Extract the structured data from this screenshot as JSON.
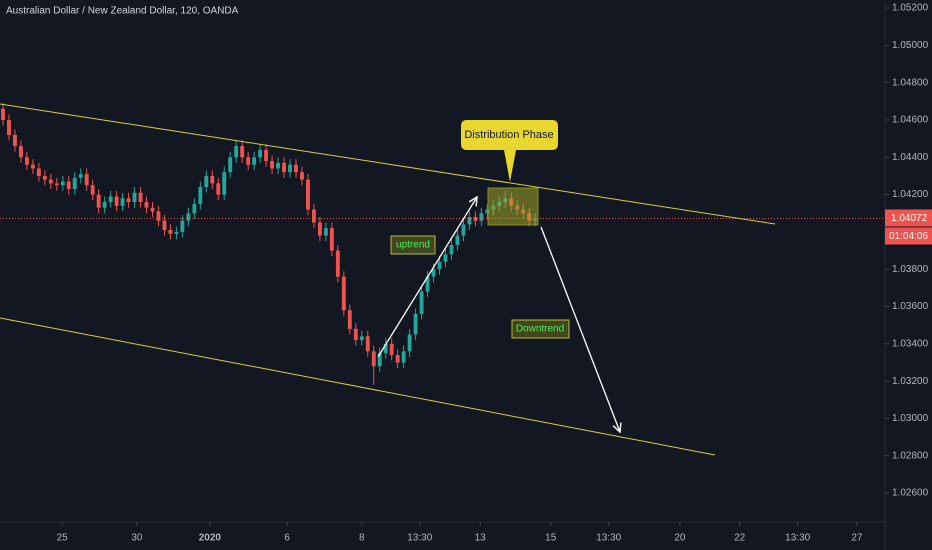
{
  "chart_data": {
    "type": "candlestick",
    "title": "Australian Dollar / New Zealand Dollar, 120, OANDA",
    "up_color": "#26a69a",
    "down_color": "#ef5350",
    "xlim": [
      -0.5,
      147.5
    ],
    "xticks": [
      {
        "value": 9.9,
        "label": "25"
      },
      {
        "value": 22.4,
        "label": "30"
      },
      {
        "value": 34.6,
        "label": "2020"
      },
      {
        "value": 47.5,
        "label": "6"
      },
      {
        "value": 60,
        "label": "8"
      },
      {
        "value": 69.7,
        "label": "13:30"
      },
      {
        "value": 79.8,
        "label": "13"
      },
      {
        "value": 91.6,
        "label": "15"
      },
      {
        "value": 101.3,
        "label": "13:30"
      },
      {
        "value": 113.2,
        "label": "20"
      },
      {
        "value": 123.2,
        "label": "22"
      },
      {
        "value": 132.9,
        "label": "13:30"
      },
      {
        "value": 142.8,
        "label": "27"
      }
    ],
    "ylim": [
      1.02445,
      1.05243
    ],
    "yticks": [
      {
        "value": 1.052,
        "label": "1.05200"
      },
      {
        "value": 1.05,
        "label": "1.05000"
      },
      {
        "value": 1.048,
        "label": "1.04800"
      },
      {
        "value": 1.046,
        "label": "1.04600"
      },
      {
        "value": 1.044,
        "label": "1.04400"
      },
      {
        "value": 1.042,
        "label": "1.04200"
      },
      {
        "value": 1.04,
        "label": "1.04000"
      },
      {
        "value": 1.038,
        "label": "1.03800"
      },
      {
        "value": 1.036,
        "label": "1.03600"
      },
      {
        "value": 1.034,
        "label": "1.03400"
      },
      {
        "value": 1.032,
        "label": "1.03200"
      },
      {
        "value": 1.03,
        "label": "1.03000"
      },
      {
        "value": 1.028,
        "label": "1.02800"
      },
      {
        "value": 1.026,
        "label": "1.02600"
      }
    ],
    "last_price": 1.04072,
    "countdown": "01:04:06",
    "annotations": [
      "Distribution Phase",
      "uptrend",
      "Downtrend"
    ],
    "ohlc": [
      [
        1.0466,
        1.0469,
        1.0457,
        1.046
      ],
      [
        1.046,
        1.0463,
        1.0449,
        1.0452
      ],
      [
        1.0452,
        1.0455,
        1.0443,
        1.0446
      ],
      [
        1.0446,
        1.0449,
        1.0437,
        1.044
      ],
      [
        1.044,
        1.0443,
        1.0433,
        1.0436
      ],
      [
        1.0436,
        1.0439,
        1.0431,
        1.0434
      ],
      [
        1.0434,
        1.0437,
        1.0427,
        1.043
      ],
      [
        1.043,
        1.0433,
        1.0425,
        1.0428
      ],
      [
        1.0428,
        1.0431,
        1.0423,
        1.0426
      ],
      [
        1.0426,
        1.0429,
        1.0422,
        1.0425
      ],
      [
        1.0425,
        1.043,
        1.0422,
        1.0427
      ],
      [
        1.0427,
        1.043,
        1.042,
        1.0423
      ],
      [
        1.0423,
        1.0432,
        1.042,
        1.0429
      ],
      [
        1.0429,
        1.0434,
        1.0426,
        1.0431
      ],
      [
        1.0431,
        1.0434,
        1.0422,
        1.0425
      ],
      [
        1.0425,
        1.0428,
        1.0417,
        1.042
      ],
      [
        1.042,
        1.0423,
        1.041,
        1.0413
      ],
      [
        1.0413,
        1.0419,
        1.041,
        1.0416
      ],
      [
        1.0416,
        1.0422,
        1.0413,
        1.0419
      ],
      [
        1.0419,
        1.0422,
        1.0411,
        1.0414
      ],
      [
        1.0414,
        1.0421,
        1.0411,
        1.0418
      ],
      [
        1.0418,
        1.0421,
        1.0413,
        1.0416
      ],
      [
        1.0416,
        1.0424,
        1.0413,
        1.0421
      ],
      [
        1.0421,
        1.0424,
        1.0413,
        1.0416
      ],
      [
        1.0416,
        1.0419,
        1.041,
        1.0413
      ],
      [
        1.0413,
        1.0416,
        1.0408,
        1.0411
      ],
      [
        1.0411,
        1.0414,
        1.0403,
        1.0406
      ],
      [
        1.0406,
        1.0409,
        1.0398,
        1.0401
      ],
      [
        1.0401,
        1.0404,
        1.0396,
        1.0399
      ],
      [
        1.0399,
        1.0403,
        1.0396,
        1.04
      ],
      [
        1.04,
        1.0409,
        1.0397,
        1.0406
      ],
      [
        1.0406,
        1.0413,
        1.0403,
        1.041
      ],
      [
        1.041,
        1.0418,
        1.0407,
        1.0415
      ],
      [
        1.0415,
        1.0427,
        1.0412,
        1.0424
      ],
      [
        1.0424,
        1.0433,
        1.0421,
        1.043
      ],
      [
        1.043,
        1.0433,
        1.0423,
        1.0426
      ],
      [
        1.0426,
        1.0429,
        1.0417,
        1.042
      ],
      [
        1.042,
        1.0435,
        1.0417,
        1.0432
      ],
      [
        1.0432,
        1.0443,
        1.0429,
        1.044
      ],
      [
        1.044,
        1.0449,
        1.0437,
        1.0446
      ],
      [
        1.0446,
        1.0449,
        1.0437,
        1.044
      ],
      [
        1.044,
        1.0443,
        1.0433,
        1.0436
      ],
      [
        1.0436,
        1.0443,
        1.0433,
        1.044
      ],
      [
        1.044,
        1.0447,
        1.0437,
        1.0444
      ],
      [
        1.0444,
        1.0447,
        1.0435,
        1.0438
      ],
      [
        1.0438,
        1.0441,
        1.0431,
        1.0434
      ],
      [
        1.0434,
        1.044,
        1.0431,
        1.0437
      ],
      [
        1.0437,
        1.044,
        1.0429,
        1.0432
      ],
      [
        1.0432,
        1.0439,
        1.0429,
        1.0436
      ],
      [
        1.0436,
        1.0439,
        1.0429,
        1.0432
      ],
      [
        1.0432,
        1.0435,
        1.0425,
        1.0428
      ],
      [
        1.0428,
        1.0431,
        1.0409,
        1.0412
      ],
      [
        1.0412,
        1.0415,
        1.0402,
        1.0405
      ],
      [
        1.0405,
        1.0408,
        1.0395,
        1.0398
      ],
      [
        1.0398,
        1.0405,
        1.0395,
        1.0402
      ],
      [
        1.0402,
        1.0405,
        1.0387,
        1.039
      ],
      [
        1.039,
        1.0393,
        1.0373,
        1.0376
      ],
      [
        1.0376,
        1.0379,
        1.0355,
        1.0358
      ],
      [
        1.0358,
        1.0361,
        1.0345,
        1.0348
      ],
      [
        1.0348,
        1.0351,
        1.0339,
        1.0342
      ],
      [
        1.0342,
        1.0347,
        1.0339,
        1.0344
      ],
      [
        1.0344,
        1.0347,
        1.0333,
        1.0336
      ],
      [
        1.0336,
        1.0339,
        1.0318,
        1.0328
      ],
      [
        1.0328,
        1.0338,
        1.0325,
        1.0335
      ],
      [
        1.0335,
        1.0343,
        1.0332,
        1.034
      ],
      [
        1.034,
        1.0343,
        1.0331,
        1.0334
      ],
      [
        1.0334,
        1.0337,
        1.0327,
        1.033
      ],
      [
        1.033,
        1.0339,
        1.0327,
        1.0336
      ],
      [
        1.0336,
        1.0348,
        1.0333,
        1.0345
      ],
      [
        1.0345,
        1.0359,
        1.0342,
        1.0356
      ],
      [
        1.0356,
        1.0371,
        1.0353,
        1.0368
      ],
      [
        1.0368,
        1.0379,
        1.0365,
        1.0376
      ],
      [
        1.0376,
        1.0383,
        1.0373,
        1.038
      ],
      [
        1.038,
        1.0387,
        1.0377,
        1.0384
      ],
      [
        1.0384,
        1.0391,
        1.0381,
        1.0388
      ],
      [
        1.0388,
        1.0396,
        1.0385,
        1.0393
      ],
      [
        1.0393,
        1.0401,
        1.039,
        1.0398
      ],
      [
        1.0398,
        1.0407,
        1.0395,
        1.0404
      ],
      [
        1.0404,
        1.0411,
        1.0401,
        1.0408
      ],
      [
        1.0408,
        1.0411,
        1.0403,
        1.0406
      ],
      [
        1.0406,
        1.0413,
        1.0403,
        1.041
      ],
      [
        1.041,
        1.0415,
        1.0407,
        1.0412
      ],
      [
        1.0412,
        1.0417,
        1.0409,
        1.0414
      ],
      [
        1.0414,
        1.0419,
        1.0411,
        1.0416
      ],
      [
        1.0416,
        1.0422,
        1.0413,
        1.0418
      ],
      [
        1.0418,
        1.0421,
        1.0411,
        1.0414
      ],
      [
        1.0414,
        1.0417,
        1.0409,
        1.0412
      ],
      [
        1.0412,
        1.0415,
        1.0407,
        1.041
      ],
      [
        1.041,
        1.0413,
        1.0403,
        1.0406
      ],
      [
        1.0406,
        1.041,
        1.0403,
        1.0407
      ]
    ]
  }
}
